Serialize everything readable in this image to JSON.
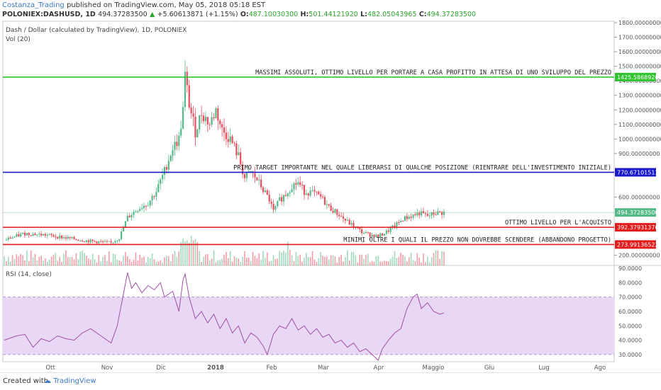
{
  "header": {
    "author": "Costanza_Trading",
    "published_text": "published on TradingView.com, May 05, 2018 05:18 EST",
    "symbol": "POLONIEX:DASHUSD, 1D",
    "last": "494.37283500",
    "change_arrow": "▲",
    "change": "+5.60613871 (+1.15%)",
    "open_label": "O:",
    "open": "487.10030300",
    "high_label": "H:",
    "high": "501.44121920",
    "low_label": "L:",
    "low": "482.05043965",
    "close_label": "C:",
    "close": "494.37283500"
  },
  "pane_labels": {
    "title": "Dash / Dollar (calculated by TradingView), 1D, POLONIEX",
    "vol": "Vol (20)",
    "rsi": "RSI (14, close)"
  },
  "footer": {
    "created": "Created with",
    "brand": "TradingView"
  },
  "colors": {
    "up": "#53b987",
    "down": "#eb4d5c",
    "green_line": "#31c431",
    "blue_line": "#1a1acd",
    "red_line": "#e11a1a",
    "rsi_line": "#a04fa4",
    "rsi_band": "#e9d8f5"
  },
  "chart_data": [
    {
      "type": "candlestick",
      "title": "Dash / Dollar (calculated by TradingView), 1D, POLONIEX",
      "x_ticks": [
        "Ott",
        "Nov",
        "Dic",
        "2018",
        "Feb",
        "Mar",
        "Apr",
        "Maggio",
        "Giu",
        "Lug",
        "Ago"
      ],
      "y_ticks": [
        "1800.00000000",
        "1700.00000000",
        "1600.00000000",
        "1500.00000000",
        "1400.00000000",
        "1300.00000000",
        "1200.00000000",
        "1100.00000000",
        "1000.00000000",
        "900.00000000",
        "600.00000000",
        "200.00000000"
      ],
      "ylim": [
        130,
        1810
      ],
      "price_path": [
        [
          0,
          305
        ],
        [
          10,
          350
        ],
        [
          20,
          340
        ],
        [
          30,
          320
        ],
        [
          40,
          300
        ],
        [
          47,
          290
        ],
        [
          52,
          285
        ],
        [
          56,
          320
        ],
        [
          60,
          460
        ],
        [
          65,
          520
        ],
        [
          70,
          560
        ],
        [
          74,
          640
        ],
        [
          78,
          780
        ],
        [
          82,
          940
        ],
        [
          85,
          1000
        ],
        [
          87,
          1200
        ],
        [
          88,
          1430
        ],
        [
          90,
          1240
        ],
        [
          93,
          1050
        ],
        [
          96,
          1180
        ],
        [
          100,
          1100
        ],
        [
          103,
          1200
        ],
        [
          106,
          1060
        ],
        [
          110,
          1000
        ],
        [
          114,
          880
        ],
        [
          117,
          730
        ],
        [
          120,
          770
        ],
        [
          123,
          720
        ],
        [
          126,
          650
        ],
        [
          129,
          580
        ],
        [
          131,
          500
        ],
        [
          134,
          580
        ],
        [
          137,
          620
        ],
        [
          140,
          680
        ],
        [
          143,
          700
        ],
        [
          146,
          640
        ],
        [
          150,
          630
        ],
        [
          154,
          600
        ],
        [
          158,
          530
        ],
        [
          162,
          490
        ],
        [
          166,
          440
        ],
        [
          170,
          400
        ],
        [
          174,
          360
        ],
        [
          178,
          340
        ],
        [
          182,
          330
        ],
        [
          186,
          360
        ],
        [
          190,
          400
        ],
        [
          194,
          450
        ],
        [
          198,
          470
        ],
        [
          202,
          490
        ],
        [
          206,
          470
        ],
        [
          210,
          490
        ],
        [
          214,
          494
        ]
      ],
      "levels": [
        {
          "price": "1425.58689262",
          "label": "MASSIMI ASSOLUTI, OTTIMO LIVELLO PER PORTARE A CASA PROFITTO IN ATTESA DI UNO SVILUPPO DEL PREZZO",
          "color": "green"
        },
        {
          "price": "770.67101513",
          "label": "PRIMO TARGET IMPORTANTE NEL QUALE LIBERARSI DI QUALCHE POSIZIONE (RIENTRARE DELL'INVESTIMENTO INIZIALE)",
          "color": "blue"
        },
        {
          "price": "392.37931370",
          "label": "OTTIMO LIVELLO PER L'ACQUISTO",
          "color": "red"
        },
        {
          "price": "273.99136522",
          "label": "MINIMI OLTRE I QUALI IL PREZZO NON DOVREBBE SCENDERE (ABBANDONO PROGETTO)",
          "color": "red"
        }
      ],
      "last_price": "494.37283500"
    },
    {
      "type": "line",
      "title": "RSI (14, close)",
      "y_ticks": [
        "90.0000",
        "80.0000",
        "70.0000",
        "60.0000",
        "50.0000",
        "40.0000",
        "30.0000"
      ],
      "ylim": [
        25,
        92
      ],
      "band": [
        30,
        70
      ],
      "rsi_path": [
        [
          0,
          40
        ],
        [
          6,
          43
        ],
        [
          10,
          44
        ],
        [
          14,
          35
        ],
        [
          18,
          41
        ],
        [
          22,
          39
        ],
        [
          26,
          43
        ],
        [
          30,
          41
        ],
        [
          34,
          40
        ],
        [
          38,
          45
        ],
        [
          42,
          48
        ],
        [
          46,
          44
        ],
        [
          50,
          40
        ],
        [
          52,
          38
        ],
        [
          55,
          50
        ],
        [
          58,
          72
        ],
        [
          60,
          87
        ],
        [
          62,
          76
        ],
        [
          64,
          80
        ],
        [
          67,
          73
        ],
        [
          70,
          78
        ],
        [
          73,
          75
        ],
        [
          76,
          80
        ],
        [
          78,
          70
        ],
        [
          80,
          72
        ],
        [
          82,
          74
        ],
        [
          85,
          60
        ],
        [
          87,
          82
        ],
        [
          88,
          86
        ],
        [
          90,
          70
        ],
        [
          93,
          55
        ],
        [
          96,
          60
        ],
        [
          99,
          52
        ],
        [
          102,
          58
        ],
        [
          105,
          48
        ],
        [
          108,
          55
        ],
        [
          111,
          45
        ],
        [
          114,
          50
        ],
        [
          117,
          38
        ],
        [
          120,
          45
        ],
        [
          123,
          42
        ],
        [
          126,
          36
        ],
        [
          128,
          30
        ],
        [
          131,
          44
        ],
        [
          134,
          50
        ],
        [
          137,
          48
        ],
        [
          140,
          55
        ],
        [
          143,
          47
        ],
        [
          146,
          50
        ],
        [
          149,
          44
        ],
        [
          152,
          48
        ],
        [
          155,
          42
        ],
        [
          158,
          44
        ],
        [
          161,
          38
        ],
        [
          164,
          40
        ],
        [
          167,
          35
        ],
        [
          170,
          38
        ],
        [
          173,
          32
        ],
        [
          176,
          34
        ],
        [
          179,
          30
        ],
        [
          182,
          26
        ],
        [
          184,
          34
        ],
        [
          187,
          40
        ],
        [
          190,
          45
        ],
        [
          193,
          48
        ],
        [
          196,
          62
        ],
        [
          199,
          70
        ],
        [
          201,
          72
        ],
        [
          203,
          62
        ],
        [
          206,
          66
        ],
        [
          209,
          60
        ],
        [
          212,
          58
        ],
        [
          214,
          59
        ]
      ]
    }
  ]
}
